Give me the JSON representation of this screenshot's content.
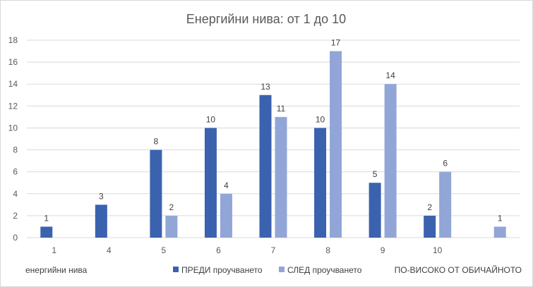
{
  "chart_data": {
    "type": "bar",
    "title": "Енергийни нива: от 1 до 10",
    "categories": [
      "1",
      "4",
      "5",
      "6",
      "7",
      "8",
      "9",
      "10",
      "ПО-ВИСОКО ОТ ОБИЧАЙНОТО"
    ],
    "xlabel": "енергийни нива",
    "ylabel": "",
    "ylim": [
      0,
      18
    ],
    "yticks": [
      0,
      2,
      4,
      6,
      8,
      10,
      12,
      14,
      16,
      18
    ],
    "grid": true,
    "legend_position": "bottom",
    "series": [
      {
        "name": "ПРЕДИ проучването",
        "color": "#3a62ae",
        "values": [
          1,
          3,
          8,
          10,
          13,
          10,
          5,
          2,
          null
        ]
      },
      {
        "name": "СЛЕД проучването",
        "color": "#91a6d7",
        "values": [
          null,
          null,
          2,
          4,
          11,
          17,
          14,
          6,
          1
        ]
      }
    ]
  }
}
